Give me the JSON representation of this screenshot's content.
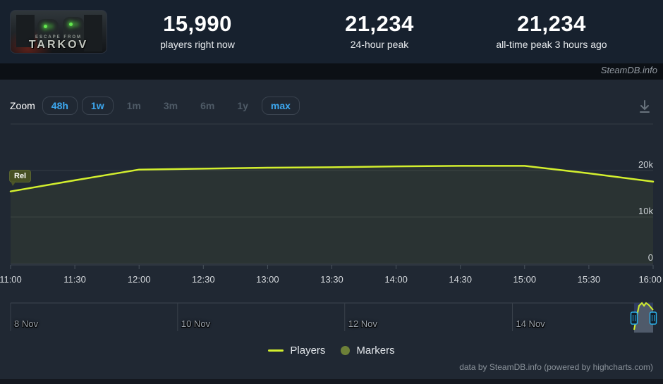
{
  "header": {
    "capsule": {
      "line1": "ESCAPE FROM",
      "line2": "TARKOV"
    },
    "stats": [
      {
        "value": "15,990",
        "label": "players right now"
      },
      {
        "value": "21,234",
        "label": "24-hour peak"
      },
      {
        "value": "21,234",
        "label": "all-time peak 3 hours ago"
      }
    ]
  },
  "watermark": "SteamDB.info",
  "toolbar": {
    "zoom_label": "Zoom",
    "buttons": [
      {
        "label": "48h",
        "enabled": true
      },
      {
        "label": "1w",
        "enabled": true
      },
      {
        "label": "1m",
        "enabled": false
      },
      {
        "label": "3m",
        "enabled": false
      },
      {
        "label": "6m",
        "enabled": false
      },
      {
        "label": "1y",
        "enabled": false
      },
      {
        "label": "max",
        "enabled": true
      }
    ]
  },
  "chart_data": {
    "type": "line",
    "x": [
      "11:00",
      "11:30",
      "12:00",
      "12:30",
      "13:00",
      "13:30",
      "14:00",
      "14:30",
      "15:00",
      "15:30",
      "16:00"
    ],
    "series": [
      {
        "name": "Players",
        "color": "#d3ef2e",
        "values": [
          15500,
          17900,
          20200,
          20400,
          20600,
          20700,
          20900,
          21000,
          21000,
          19400,
          17600
        ]
      }
    ],
    "ylim": [
      0,
      30000
    ],
    "yticks": [
      {
        "label": "0",
        "value": 0
      },
      {
        "label": "10k",
        "value": 10000
      },
      {
        "label": "20k",
        "value": 20000
      },
      {
        "label": "",
        "value": 30000
      }
    ],
    "grid": true,
    "legend_position": "bottom",
    "flag": {
      "label": "Rel",
      "x_index": 0
    },
    "legend": [
      {
        "label": "Players",
        "swatch": "line",
        "color": "#d3ef2e"
      },
      {
        "label": "Markers",
        "swatch": "circle",
        "color": "#6d8038"
      }
    ],
    "navigator": {
      "dates": [
        {
          "label": "8 Nov",
          "f": 0.0
        },
        {
          "label": "10 Nov",
          "f": 0.26
        },
        {
          "label": "12 Nov",
          "f": 0.52
        },
        {
          "label": "14 Nov",
          "f": 0.781
        }
      ],
      "selection": [
        0.9704,
        1.0
      ],
      "series_norm": [
        [
          0.9704,
          0.05
        ],
        [
          0.9748,
          0.55
        ],
        [
          0.9781,
          0.9
        ],
        [
          0.9825,
          1.0
        ],
        [
          0.9858,
          0.9
        ],
        [
          0.989,
          1.0
        ],
        [
          0.9934,
          0.925
        ],
        [
          1.0,
          0.75
        ]
      ]
    }
  },
  "footer": {
    "credit": "data by SteamDB.info (powered by highcharts.com)"
  },
  "colors": {
    "accent_blue": "#3da8f0",
    "series_line": "#d3ef2e",
    "marker_olive": "#6d8038",
    "nav_mask": "#2f3b60",
    "nav_area": "#4f5a6a",
    "handle_stroke": "#2ab0ea"
  }
}
